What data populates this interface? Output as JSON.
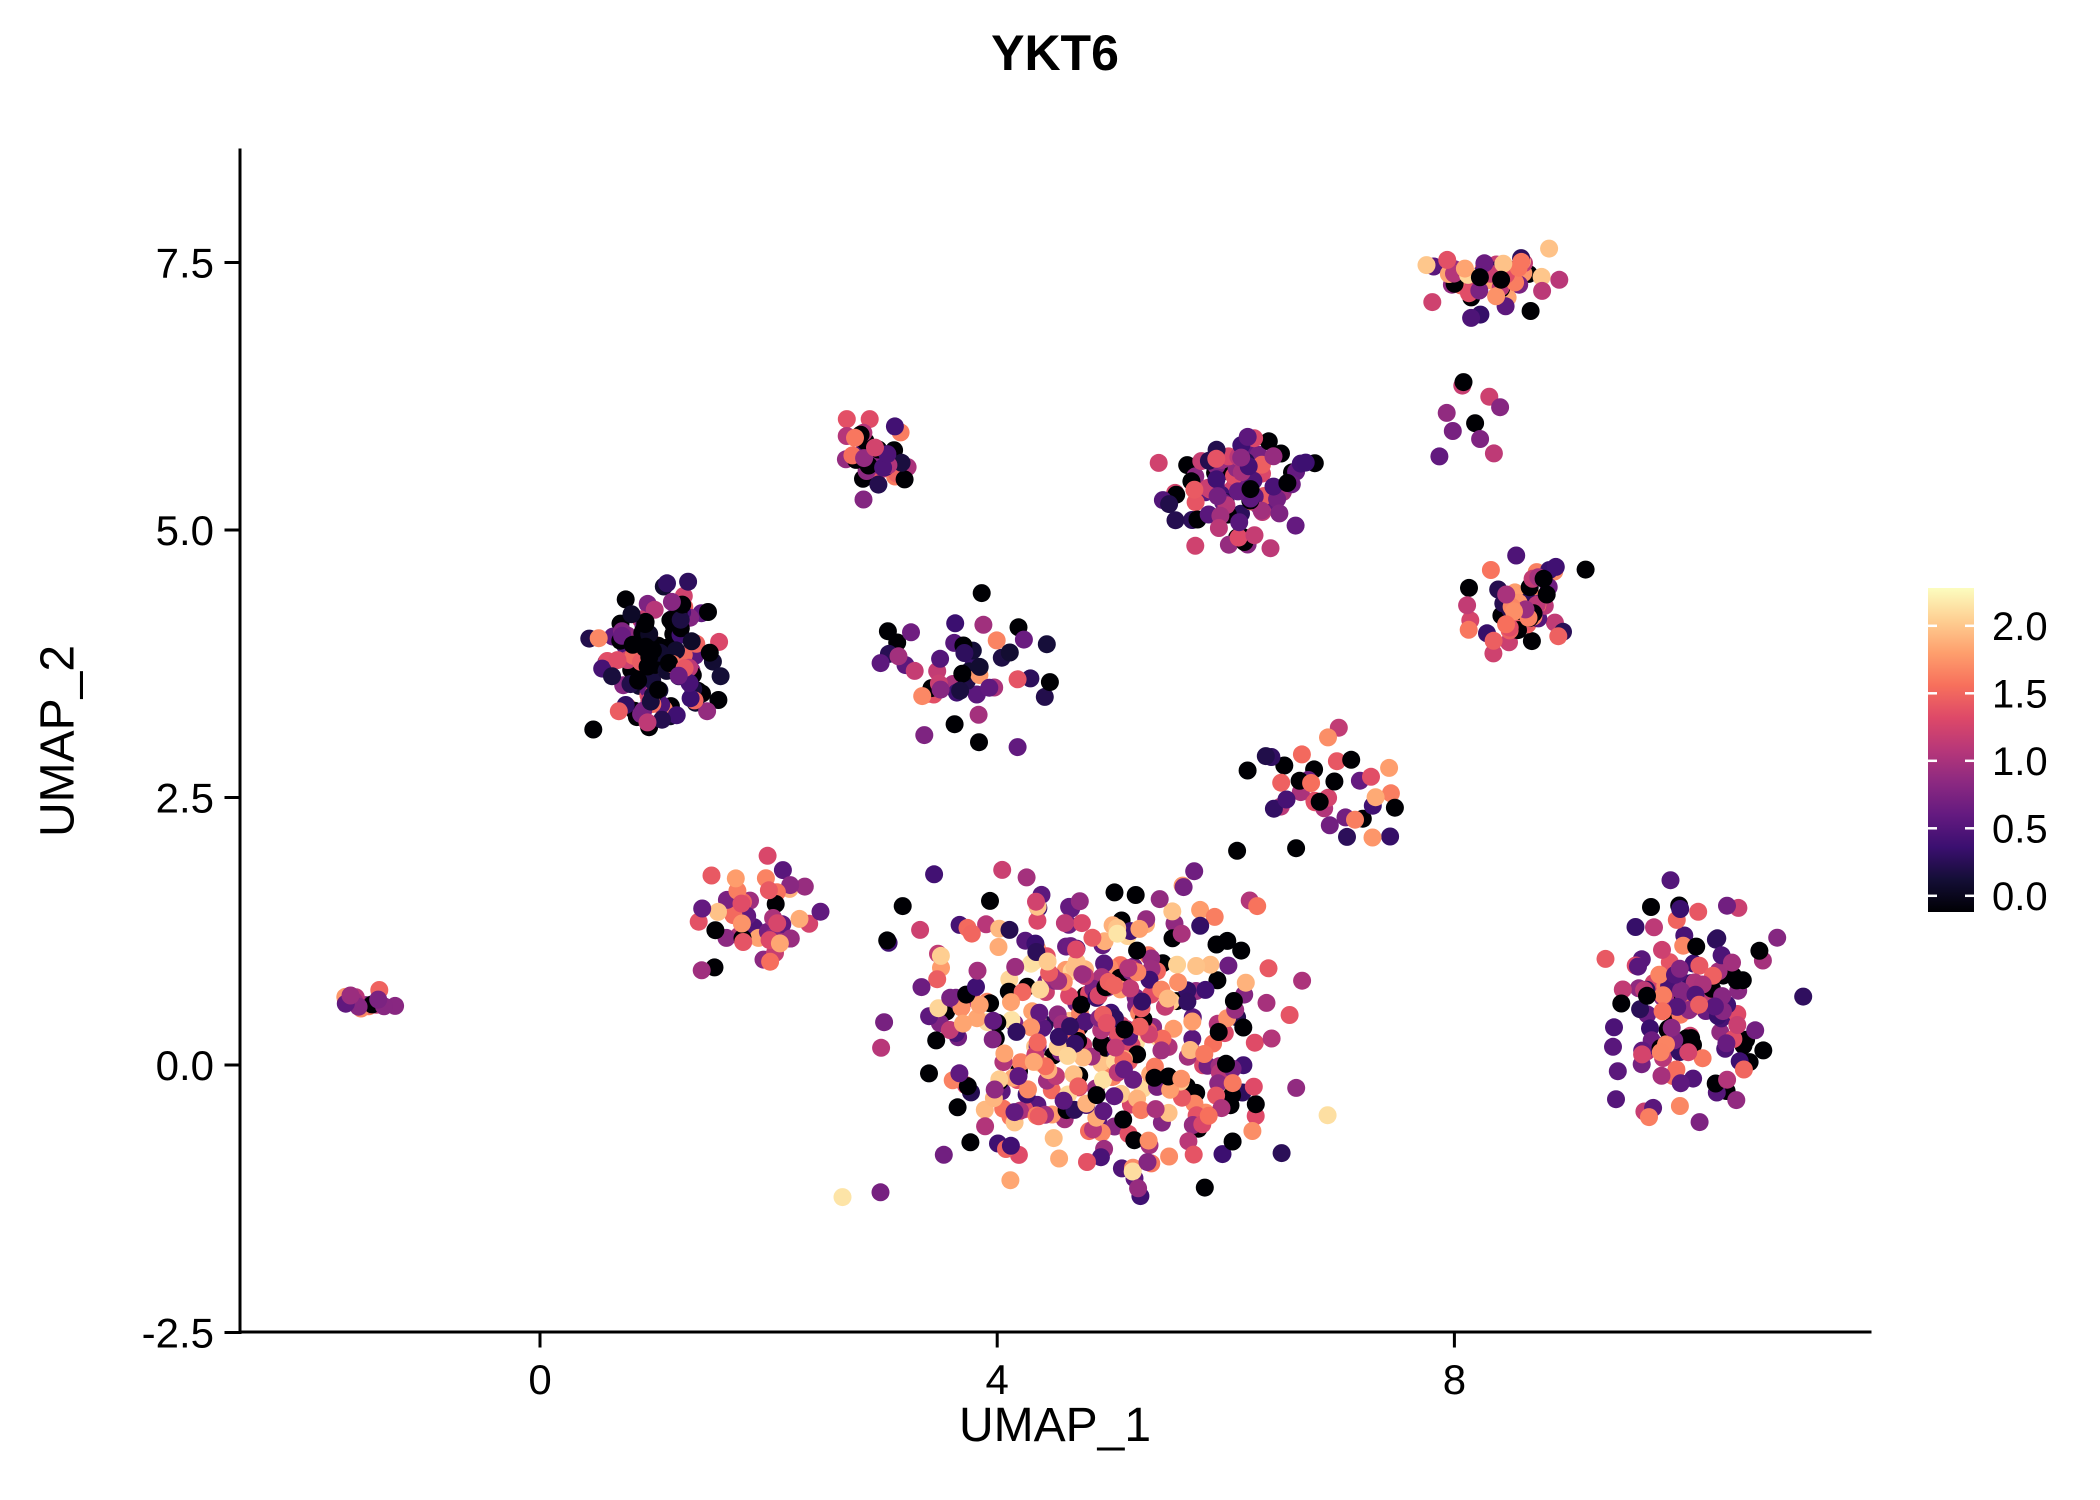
{
  "chart_data": {
    "type": "scatter",
    "title": "YKT6",
    "xlabel": "UMAP_1",
    "ylabel": "UMAP_2",
    "x_ticks": [
      0,
      4,
      8
    ],
    "x_tick_labels": [
      "0",
      "4",
      "8"
    ],
    "y_ticks": [
      -2.5,
      0.0,
      2.5,
      5.0,
      7.5
    ],
    "y_tick_labels": [
      "-2.5",
      "0.0",
      "2.5",
      "5.0",
      "7.5"
    ],
    "xlim": [
      -2.6,
      11.6
    ],
    "ylim": [
      -2.5,
      8.55
    ],
    "grid": false,
    "point_count_approx": 1100,
    "color_domain": [
      0,
      2.25
    ],
    "colormap_stops": [
      "#000004",
      "#140e36",
      "#3b0f70",
      "#641a80",
      "#8c2981",
      "#b73779",
      "#de4968",
      "#f7705c",
      "#fe9f6d",
      "#fecf92",
      "#fcfdbf"
    ],
    "colorbar": {
      "position": "right",
      "ticks": [
        2.0,
        1.5,
        1.0,
        0.5,
        0.0
      ],
      "tick_labels": [
        "2.0",
        "1.5",
        "1.0",
        "0.5",
        "0.0"
      ],
      "vmin": -0.12,
      "vmax": 2.28,
      "colormap": "magma"
    },
    "clusters": [
      {
        "name": "far-left-small",
        "cx": -1.55,
        "cy": 0.62,
        "rx": 0.33,
        "ry": 0.18,
        "n": 16,
        "zero_frac": 0.08,
        "expr_min": 0.6,
        "expr_max": 1.8,
        "expr_pow": 1.0
      },
      {
        "name": "left-upper",
        "cx": 1.05,
        "cy": 3.8,
        "rx": 0.8,
        "ry": 0.9,
        "n": 135,
        "zero_frac": 0.34,
        "expr_min": 0.15,
        "expr_max": 1.7,
        "expr_pow": 1.6
      },
      {
        "name": "left-mid-scatter",
        "cx": 1.9,
        "cy": 1.35,
        "rx": 0.75,
        "ry": 0.65,
        "n": 48,
        "zero_frac": 0.1,
        "expr_min": 0.5,
        "expr_max": 2.0,
        "expr_pow": 0.85
      },
      {
        "name": "top-mid",
        "cx": 2.95,
        "cy": 5.7,
        "rx": 0.45,
        "ry": 0.5,
        "n": 40,
        "zero_frac": 0.22,
        "expr_min": 0.2,
        "expr_max": 1.9,
        "expr_pow": 1.1
      },
      {
        "name": "mid-connector",
        "cx": 3.8,
        "cy": 3.7,
        "rx": 1.2,
        "ry": 0.9,
        "n": 50,
        "zero_frac": 0.28,
        "expr_min": 0.2,
        "expr_max": 1.8,
        "expr_pow": 1.2
      },
      {
        "name": "center-top",
        "cx": 6.1,
        "cy": 5.35,
        "rx": 0.85,
        "ry": 0.7,
        "n": 95,
        "zero_frac": 0.12,
        "expr_min": 0.3,
        "expr_max": 1.5,
        "expr_pow": 1.15
      },
      {
        "name": "top-right",
        "cx": 8.35,
        "cy": 7.35,
        "rx": 0.8,
        "ry": 0.45,
        "n": 58,
        "zero_frac": 0.18,
        "expr_min": 0.3,
        "expr_max": 2.1,
        "expr_pow": 0.95
      },
      {
        "name": "right-mid",
        "cx": 8.6,
        "cy": 4.3,
        "rx": 0.7,
        "ry": 0.6,
        "n": 56,
        "zero_frac": 0.18,
        "expr_min": 0.3,
        "expr_max": 1.9,
        "expr_pow": 1.0
      },
      {
        "name": "central-mass",
        "cx": 4.9,
        "cy": 0.3,
        "rx": 2.35,
        "ry": 1.95,
        "n": 430,
        "zero_frac": 0.13,
        "expr_min": 0.3,
        "expr_max": 2.15,
        "expr_pow": 0.85
      },
      {
        "name": "right-lower",
        "cx": 10.05,
        "cy": 0.55,
        "rx": 1.05,
        "ry": 1.45,
        "n": 140,
        "zero_frac": 0.11,
        "expr_min": 0.35,
        "expr_max": 1.7,
        "expr_pow": 1.1
      },
      {
        "name": "center-right-scatter",
        "cx": 6.9,
        "cy": 2.55,
        "rx": 1.1,
        "ry": 0.75,
        "n": 40,
        "zero_frac": 0.18,
        "expr_min": 0.3,
        "expr_max": 1.9,
        "expr_pow": 1.0
      },
      {
        "name": "upper-right-sparse",
        "cx": 8.1,
        "cy": 5.9,
        "rx": 0.6,
        "ry": 0.65,
        "n": 10,
        "zero_frac": 0.2,
        "expr_min": 0.3,
        "expr_max": 1.6,
        "expr_pow": 1.0
      }
    ]
  }
}
